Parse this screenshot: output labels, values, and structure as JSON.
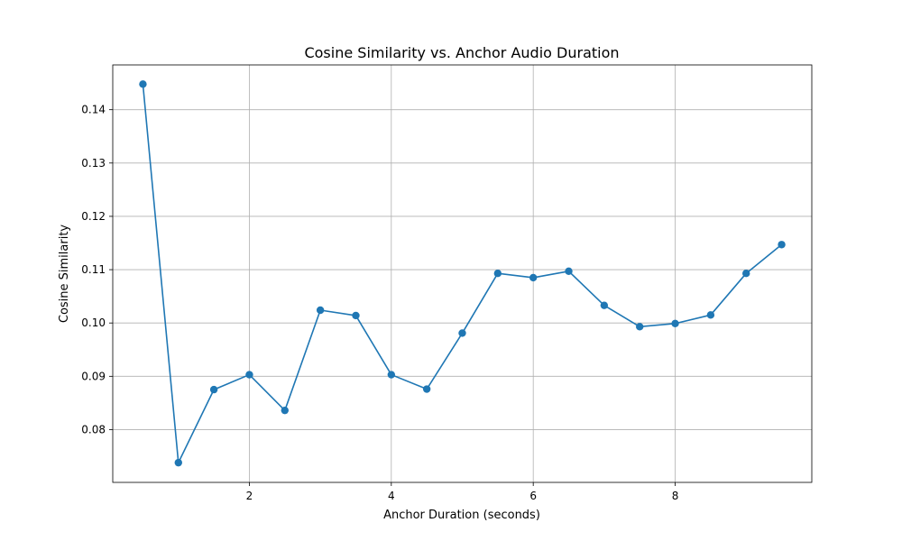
{
  "chart_data": {
    "type": "line",
    "title": "Cosine Similarity vs. Anchor Audio Duration",
    "xlabel": "Anchor Duration (seconds)",
    "ylabel": "Cosine Similarity",
    "xlim": [
      0.075,
      9.925
    ],
    "ylim": [
      0.0701,
      0.1484
    ],
    "xticks": [
      2,
      4,
      6,
      8
    ],
    "xtick_labels": [
      "2",
      "4",
      "6",
      "8"
    ],
    "yticks": [
      0.08,
      0.09,
      0.1,
      0.11,
      0.12,
      0.13,
      0.14
    ],
    "ytick_labels": [
      "0.08",
      "0.09",
      "0.10",
      "0.11",
      "0.12",
      "0.13",
      "0.14"
    ],
    "grid": true,
    "marker": "circle",
    "color": "#1f77b4",
    "series": [
      {
        "x": [
          0.5,
          1.0,
          1.5,
          2.0,
          2.5,
          3.0,
          3.5,
          4.0,
          4.5,
          5.0,
          5.5,
          6.0,
          6.5,
          7.0,
          7.5,
          8.0,
          8.5,
          9.0,
          9.5
        ],
        "values": [
          0.1448,
          0.0738,
          0.0875,
          0.0903,
          0.0836,
          0.1024,
          0.1014,
          0.0903,
          0.0876,
          0.0981,
          0.1093,
          0.1085,
          0.1097,
          0.1033,
          0.0993,
          0.0999,
          0.1015,
          0.1093,
          0.1147
        ]
      }
    ]
  }
}
